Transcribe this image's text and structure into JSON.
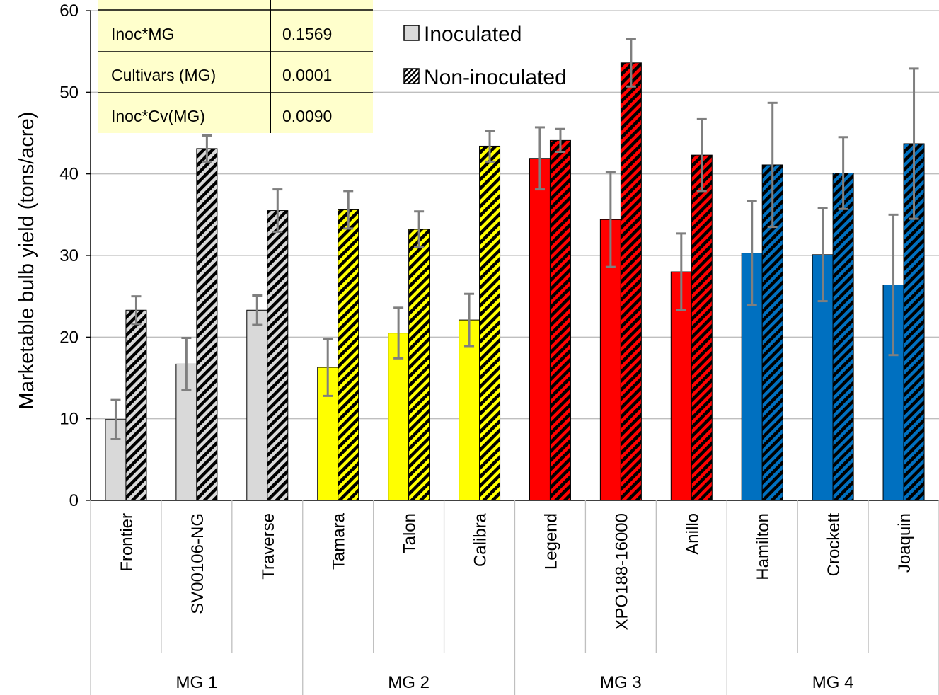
{
  "chart_data": {
    "type": "bar",
    "title": "",
    "ylabel": "Marketable bulb yield (tons/acre)",
    "xlabel": "",
    "ylim": [
      0,
      60
    ],
    "yticks": [
      0,
      10,
      20,
      30,
      40,
      50,
      60
    ],
    "grid": true,
    "legend_position": "top-center",
    "categories": [
      "Frontier",
      "SV00106-NG",
      "Traverse",
      "Tamara",
      "Talon",
      "Calibra",
      "Legend",
      "XPO188-16000",
      "Anillo",
      "Hamilton",
      "Crockett",
      "Joaquin"
    ],
    "groups": [
      {
        "label": "MG 1",
        "categories": [
          "Frontier",
          "SV00106-NG",
          "Traverse"
        ],
        "color": "#d9d9d9"
      },
      {
        "label": "MG 2",
        "categories": [
          "Tamara",
          "Talon",
          "Calibra"
        ],
        "color": "#ffff00"
      },
      {
        "label": "MG 3",
        "categories": [
          "Legend",
          "XPO188-16000",
          "Anillo"
        ],
        "color": "#ff0000"
      },
      {
        "label": "MG 4",
        "categories": [
          "Hamilton",
          "Crockett",
          "Joaquin"
        ],
        "color": "#0070c0"
      }
    ],
    "series": [
      {
        "name": "Inoculated",
        "pattern": "solid",
        "values": [
          9.9,
          16.7,
          23.3,
          16.3,
          20.5,
          22.1,
          41.9,
          34.4,
          28.0,
          30.3,
          30.1,
          26.4
        ],
        "errors": [
          2.4,
          3.2,
          1.8,
          3.5,
          3.1,
          3.2,
          3.8,
          5.8,
          4.7,
          6.4,
          5.7,
          8.6
        ]
      },
      {
        "name": "Non-inoculated",
        "pattern": "hatched",
        "values": [
          23.3,
          43.1,
          35.5,
          35.6,
          33.2,
          43.4,
          44.1,
          53.6,
          42.3,
          41.1,
          40.1,
          43.7
        ],
        "errors": [
          1.7,
          1.6,
          2.6,
          2.3,
          2.2,
          1.9,
          1.4,
          2.9,
          4.4,
          7.6,
          4.4,
          9.2
        ]
      }
    ],
    "stats_table": {
      "rows": [
        {
          "effect": "Inoc*MG",
          "p": "0.1569"
        },
        {
          "effect": "Cultivars (MG)",
          "p": "0.0001"
        },
        {
          "effect": "Inoc*Cv(MG)",
          "p": "0.0090"
        }
      ]
    }
  }
}
